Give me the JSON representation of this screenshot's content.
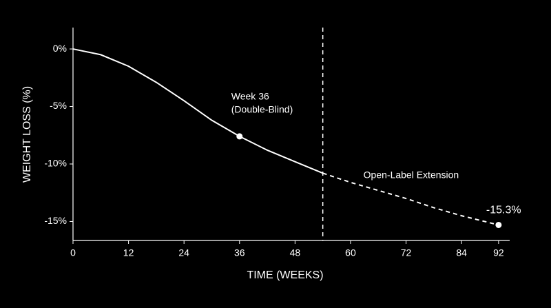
{
  "chart_data": {
    "type": "line",
    "x_label": "TIME (WEEKS)",
    "y_label": "WEIGHT LOSS (%)",
    "x": [
      0,
      6,
      12,
      18,
      24,
      30,
      36,
      42,
      48,
      54,
      60,
      66,
      72,
      78,
      84,
      92
    ],
    "series": [
      {
        "color": "#ffffff",
        "dashed": false,
        "values": [
          0,
          -0.5,
          -1.5,
          -2.9,
          -4.5,
          -6.2,
          -7.6,
          -8.8,
          -9.8,
          -10.8,
          null,
          null,
          null,
          null,
          null,
          null
        ]
      },
      {
        "color": "#ffffff",
        "dashed": true,
        "values": [
          null,
          null,
          null,
          null,
          null,
          null,
          null,
          null,
          null,
          -10.8,
          -11.6,
          -12.3,
          -13.0,
          -13.8,
          -14.5,
          -15.3
        ]
      }
    ],
    "highlight_points": [
      {
        "x": 36,
        "y": -7.6,
        "label": [
          "Week 36",
          "(Double-Blind)"
        ]
      },
      {
        "x": 92,
        "y": -15.3,
        "label": [
          "-15.3%"
        ]
      }
    ],
    "vline": {
      "x": 54,
      "label": "Open-Label Extension"
    },
    "xlim": [
      0,
      94.4
    ],
    "ylim": [
      -16.65,
      1.86
    ],
    "xticks": [
      0,
      12,
      24,
      36,
      48,
      60,
      72,
      84,
      92
    ],
    "yticks": [
      {
        "value": 0,
        "label": "0%"
      },
      {
        "value": -5,
        "label": "-5%"
      },
      {
        "value": -10,
        "label": "-10%"
      },
      {
        "value": -15,
        "label": "-15%"
      }
    ]
  }
}
